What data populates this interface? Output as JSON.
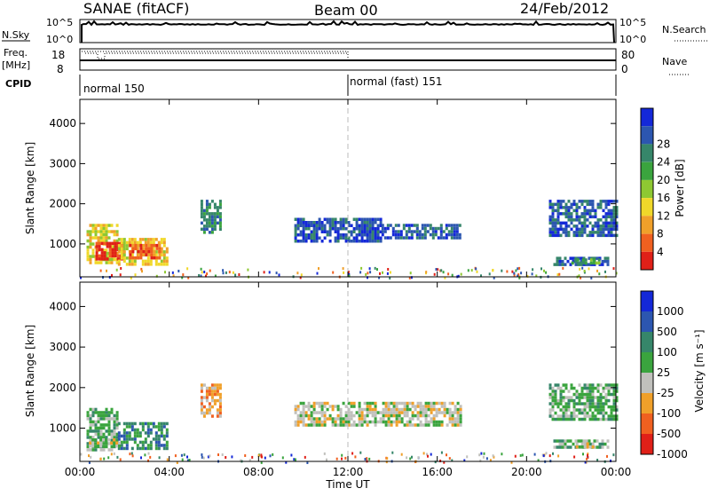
{
  "header": {
    "station": "SANAE (fitACF)",
    "beam": "Beam 00",
    "date": "24/Feb/2012"
  },
  "status": {
    "nsky_label": "N.Sky",
    "nsky_ticks": [
      "10^5",
      "10^0"
    ],
    "nsearch_label": "N.Search",
    "nsearch_ticks": [
      "10^5",
      "10^0"
    ],
    "freq_label": "Freq.",
    "freq_unit": "[MHz]",
    "freq_ticks": [
      "18",
      "8"
    ],
    "nave_label": "Nave",
    "nave_ticks": [
      "80",
      "0"
    ],
    "cpid_label": "CPID",
    "modes": [
      {
        "label": "normal 150",
        "start_hour": 0
      },
      {
        "label": "normal (fast) 151",
        "start_hour": 12
      }
    ]
  },
  "axes": {
    "y_label": "Slant Range [km]",
    "y_ticks": [
      "1000",
      "2000",
      "3000",
      "4000"
    ],
    "x_label": "Time UT",
    "x_ticks": [
      "00:00",
      "04:00",
      "08:00",
      "12:00",
      "16:00",
      "20:00",
      "00:00"
    ]
  },
  "chart_data": [
    {
      "type": "heatmap",
      "name": "power",
      "x_range_hours": [
        0,
        24
      ],
      "ylim_km": [
        180,
        4600
      ],
      "colorbar_label": "Power [dB]",
      "colorbar_ticks": [
        "4",
        "8",
        "12",
        "16",
        "20",
        "24",
        "28"
      ],
      "colors": [
        "#1428d8",
        "#2c56b0",
        "#36866a",
        "#3aa43e",
        "#8ec832",
        "#f0d82a",
        "#f0a02a",
        "#f06020",
        "#e02018"
      ],
      "regions": [
        {
          "t0": 0.3,
          "t1": 1.7,
          "r0": 500,
          "r1": 1500,
          "level": 5
        },
        {
          "t0": 0.7,
          "t1": 2.0,
          "r0": 650,
          "r1": 1050,
          "level": 8
        },
        {
          "t0": 1.7,
          "t1": 3.9,
          "r0": 500,
          "r1": 1150,
          "level": 5
        },
        {
          "t0": 2.2,
          "t1": 3.6,
          "r0": 650,
          "r1": 1000,
          "level": 7
        },
        {
          "t0": 5.4,
          "t1": 6.3,
          "r0": 1300,
          "r1": 2100,
          "level": 2
        },
        {
          "t0": 9.6,
          "t1": 13.5,
          "r0": 1050,
          "r1": 1650,
          "level": 1
        },
        {
          "t0": 13.5,
          "t1": 17.0,
          "r0": 1150,
          "r1": 1500,
          "level": 1
        },
        {
          "t0": 21.0,
          "t1": 24.0,
          "r0": 1200,
          "r1": 2100,
          "level": 1
        },
        {
          "t0": 21.2,
          "t1": 23.6,
          "r0": 500,
          "r1": 680,
          "level": 1
        },
        {
          "t0": 22.0,
          "t1": 23.2,
          "r0": 520,
          "r1": 640,
          "level": 3
        }
      ]
    },
    {
      "type": "heatmap",
      "name": "velocity",
      "x_range_hours": [
        0,
        24
      ],
      "ylim_km": [
        180,
        4600
      ],
      "colorbar_label": "Velocity [m s⁻¹]",
      "colorbar_ticks": [
        "1000",
        "500",
        "100",
        "25",
        "-25",
        "-100",
        "-500",
        "-1000"
      ],
      "colors": [
        "#1428d8",
        "#2c56b0",
        "#36866a",
        "#3aa43e",
        "#c0c0bc",
        "#f0a02a",
        "#f06020",
        "#e02018"
      ],
      "regions": [
        {
          "t0": 0.3,
          "t1": 1.7,
          "r0": 500,
          "r1": 1500,
          "level": 3
        },
        {
          "t0": 1.7,
          "t1": 3.9,
          "r0": 500,
          "r1": 1150,
          "level": 2
        },
        {
          "t0": 0.4,
          "t1": 1.8,
          "r0": 550,
          "r1": 750,
          "level": 4
        },
        {
          "t0": 5.4,
          "t1": 6.3,
          "r0": 1300,
          "r1": 2100,
          "level": 5
        },
        {
          "t0": 9.6,
          "t1": 17.0,
          "r0": 1050,
          "r1": 1650,
          "level": 4
        },
        {
          "t0": 21.0,
          "t1": 24.0,
          "r0": 1200,
          "r1": 2100,
          "level": 3
        },
        {
          "t0": 21.2,
          "t1": 23.6,
          "r0": 500,
          "r1": 720,
          "level": 3
        },
        {
          "t0": 22.2,
          "t1": 23.0,
          "r0": 530,
          "r1": 650,
          "level": 4
        }
      ]
    }
  ]
}
